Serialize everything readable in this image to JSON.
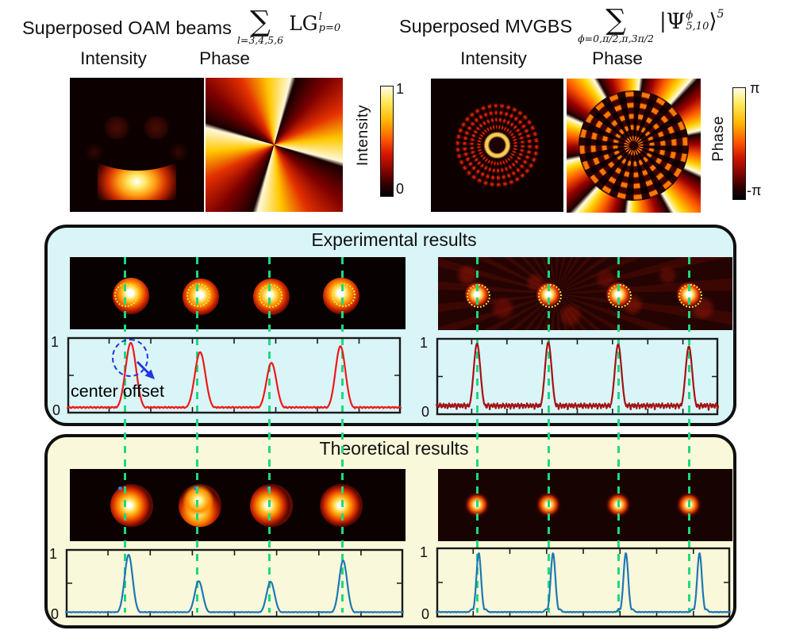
{
  "titles": {
    "left": {
      "text": "Superposed OAM beams",
      "sum_glyph": "∑",
      "sum_limits": "l=3,4,5,6",
      "term_base": "LG",
      "term_sup": "l",
      "term_sub": "p=0"
    },
    "right": {
      "text": "Superposed MVGBS",
      "sum_glyph": "∑",
      "sum_limits": "ϕ=0,π/2,π,3π/2",
      "ket_open": "|",
      "ket_symbol": "Ψ",
      "ket_sup": "ϕ",
      "ket_sub": "5,10",
      "ket_close": "⟩",
      "ket_power": "5"
    }
  },
  "map_labels": {
    "left_intensity": "Intensity",
    "left_phase": "Phase",
    "right_intensity": "Intensity",
    "right_phase": "Phase"
  },
  "colorbars": {
    "intensity": {
      "label": "Intensity",
      "top_tick": "1",
      "bottom_tick": "0"
    },
    "phase": {
      "label": "Phase",
      "top_tick": "π",
      "bottom_tick": "-π"
    }
  },
  "panels": {
    "experimental": {
      "title": "Experimental results",
      "bg": "#d9f5f8"
    },
    "theoretical": {
      "title": "Theoretical results",
      "bg": "#f9f8da"
    }
  },
  "annotation": {
    "text": "center offset"
  },
  "colors": {
    "guide_green": "#1fd87e",
    "exp_left_curve": "#f01818",
    "exp_right_curve": "#a31212",
    "theory_curve": "#1f77b4",
    "dotted_circle_yellow": "#f5e635",
    "annotation_blue": "#2236e0"
  },
  "chart_data": [
    {
      "id": "experimental-left-profile",
      "type": "line",
      "color": "#f01818",
      "ylim": [
        0,
        1.05
      ],
      "ytick_labels": [
        "0",
        "1"
      ],
      "noise": 0.03,
      "seed": 3,
      "guide_x": [
        0.171,
        0.388,
        0.605,
        0.824
      ],
      "peaks": [
        {
          "x": 0.19,
          "height": 1.0,
          "width": 0.016
        },
        {
          "x": 0.398,
          "height": 0.86,
          "width": 0.016
        },
        {
          "x": 0.612,
          "height": 0.7,
          "width": 0.015
        },
        {
          "x": 0.819,
          "height": 0.95,
          "width": 0.015
        }
      ]
    },
    {
      "id": "experimental-right-profile",
      "type": "line",
      "color": "#a31212",
      "ylim": [
        0,
        1.05
      ],
      "ytick_labels": [
        "0",
        "1"
      ],
      "noise": 0.105,
      "seed": 7,
      "guide_x": [
        0.144,
        0.397,
        0.645,
        0.896
      ],
      "peaks": [
        {
          "x": 0.144,
          "height": 1.0,
          "width": 0.012
        },
        {
          "x": 0.397,
          "height": 1.02,
          "width": 0.012
        },
        {
          "x": 0.645,
          "height": 0.99,
          "width": 0.012
        },
        {
          "x": 0.896,
          "height": 0.96,
          "width": 0.012
        }
      ]
    },
    {
      "id": "theoretical-left-profile",
      "type": "line",
      "color": "#1f77b4",
      "ylim": [
        0,
        1.05
      ],
      "ytick_labels": [
        "0",
        "1"
      ],
      "noise": 0.014,
      "seed": 11,
      "guide_x": [
        0.171,
        0.388,
        0.605,
        0.824
      ],
      "peaks": [
        {
          "x": 0.186,
          "height": 1.0,
          "width": 0.012
        },
        {
          "x": 0.394,
          "height": 0.55,
          "width": 0.012
        },
        {
          "x": 0.607,
          "height": 0.54,
          "width": 0.012
        },
        {
          "x": 0.822,
          "height": 0.9,
          "width": 0.012
        }
      ]
    },
    {
      "id": "theoretical-right-profile",
      "type": "line",
      "color": "#1f77b4",
      "ylim": [
        0,
        1.05
      ],
      "ytick_labels": [
        "0",
        "1"
      ],
      "noise": 0.016,
      "seed": 5,
      "sidelobe": {
        "offset": 0.022,
        "height": 0.07
      },
      "guide_x": [
        0.144,
        0.397,
        0.645,
        0.896
      ],
      "peaks": [
        {
          "x": 0.144,
          "height": 1.0,
          "width": 0.008
        },
        {
          "x": 0.397,
          "height": 1.0,
          "width": 0.008
        },
        {
          "x": 0.645,
          "height": 1.0,
          "width": 0.008
        },
        {
          "x": 0.896,
          "height": 1.0,
          "width": 0.008
        }
      ]
    }
  ]
}
